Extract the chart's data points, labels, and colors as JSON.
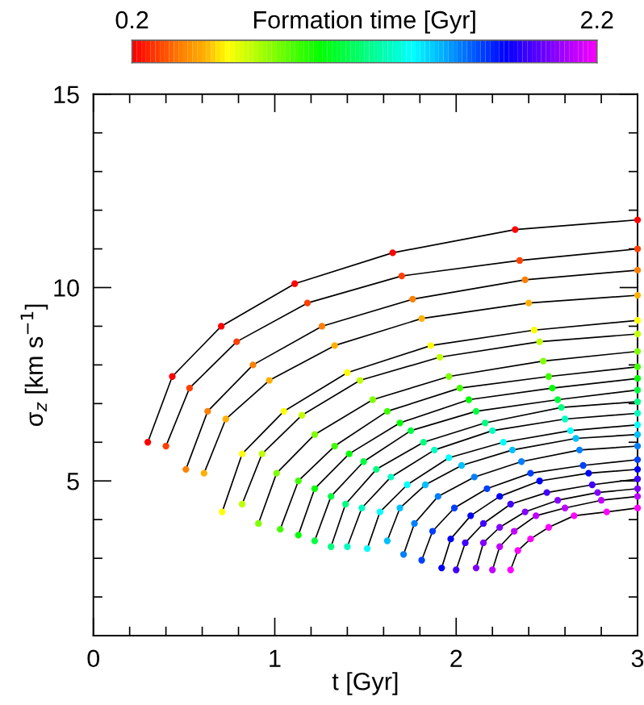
{
  "chart_data": {
    "type": "scatter",
    "xlabel": "t [Gyr]",
    "ylabel": "σ$_{z}$ [km s$^{−1}$]",
    "clabel": "Formation time [Gyr]",
    "clim": [
      0.2,
      2.2
    ],
    "cticks": [
      0.2,
      2.2
    ],
    "xlim": [
      0,
      3
    ],
    "ylim": [
      1,
      15
    ],
    "xticks": [
      0,
      {
        "value": 0.2,
        "label": null
      },
      {
        "value": 0.4,
        "label": null
      },
      {
        "value": 0.6,
        "label": null
      },
      {
        "value": 0.8,
        "label": null
      },
      1,
      {
        "value": 1.2,
        "label": null
      },
      {
        "value": 1.4,
        "label": null
      },
      {
        "value": 1.6,
        "label": null
      },
      {
        "value": 1.8,
        "label": null
      },
      2,
      {
        "value": 2.2,
        "label": null
      },
      {
        "value": 2.4,
        "label": null
      },
      {
        "value": 2.6,
        "label": null
      },
      {
        "value": 2.8,
        "label": null
      },
      3
    ],
    "yticks": [
      {
        "value": 1,
        "label": null
      },
      {
        "value": 2,
        "label": null
      },
      {
        "value": 3,
        "label": null
      },
      {
        "value": 4,
        "label": null
      },
      5,
      {
        "value": 6,
        "label": null
      },
      {
        "value": 7,
        "label": null
      },
      {
        "value": 8,
        "label": null
      },
      {
        "value": 9,
        "label": null
      },
      10,
      {
        "value": 11,
        "label": null
      },
      {
        "value": 12,
        "label": null
      },
      {
        "value": 13,
        "label": null
      },
      {
        "value": 14,
        "label": null
      },
      15
    ],
    "grid": false,
    "legend": false,
    "marker": "circle",
    "series": [
      {
        "color": "#ff0000",
        "x": [
          0.3,
          0.435,
          0.705,
          1.11,
          1.65,
          2.325,
          3.0
        ],
        "values": [
          6.0,
          7.7,
          9.0,
          10.1,
          10.9,
          11.5,
          11.75
        ]
      },
      {
        "color": "#ff4000",
        "x": [
          0.4,
          0.53,
          0.79,
          1.18,
          1.7,
          2.35,
          3.0
        ],
        "values": [
          5.9,
          7.4,
          8.6,
          9.6,
          10.3,
          10.7,
          11.0
        ]
      },
      {
        "color": "#ff8000",
        "x": [
          0.51,
          0.63,
          0.88,
          1.26,
          1.76,
          2.38,
          3.0
        ],
        "values": [
          5.3,
          6.8,
          8.0,
          9.0,
          9.7,
          10.2,
          10.45
        ]
      },
      {
        "color": "#ffb000",
        "x": [
          0.61,
          0.73,
          0.97,
          1.33,
          1.81,
          2.4,
          3.0
        ],
        "values": [
          5.2,
          6.6,
          7.6,
          8.5,
          9.2,
          9.6,
          9.8
        ]
      },
      {
        "color": "#ffff00",
        "x": [
          0.71,
          0.82,
          1.05,
          1.4,
          1.86,
          2.43,
          3.0
        ],
        "values": [
          4.2,
          5.7,
          6.8,
          7.8,
          8.5,
          8.9,
          9.15
        ]
      },
      {
        "color": "#c0ff00",
        "x": [
          0.82,
          0.93,
          1.15,
          1.47,
          1.91,
          2.46,
          3.0
        ],
        "values": [
          4.4,
          5.7,
          6.7,
          7.6,
          8.2,
          8.6,
          8.8
        ]
      },
      {
        "color": "#80ff00",
        "x": [
          0.91,
          1.01,
          1.22,
          1.54,
          1.96,
          2.48,
          3.0
        ],
        "values": [
          3.9,
          5.2,
          6.2,
          7.1,
          7.7,
          8.1,
          8.35
        ]
      },
      {
        "color": "#40ff00",
        "x": [
          1.03,
          1.13,
          1.33,
          1.62,
          2.02,
          2.51,
          3.0
        ],
        "values": [
          3.75,
          5.0,
          5.9,
          6.8,
          7.4,
          7.7,
          7.95
        ]
      },
      {
        "color": "#00ff00",
        "x": [
          1.13,
          1.22,
          1.41,
          1.69,
          2.07,
          2.53,
          3.0
        ],
        "values": [
          3.6,
          4.8,
          5.7,
          6.5,
          7.1,
          7.4,
          7.65
        ]
      },
      {
        "color": "#00ff40",
        "x": [
          1.22,
          1.31,
          1.49,
          1.75,
          2.11,
          2.56,
          3.0
        ],
        "values": [
          3.45,
          4.6,
          5.5,
          6.3,
          6.8,
          7.1,
          7.35
        ]
      },
      {
        "color": "#00ff80",
        "x": [
          1.31,
          1.39,
          1.56,
          1.82,
          2.16,
          2.58,
          3.0
        ],
        "values": [
          3.3,
          4.4,
          5.3,
          6.0,
          6.5,
          6.9,
          7.05
        ]
      },
      {
        "color": "#00ffc0",
        "x": [
          1.4,
          1.48,
          1.64,
          1.88,
          2.2,
          2.6,
          3.0
        ],
        "values": [
          3.3,
          4.3,
          5.1,
          5.8,
          6.3,
          6.6,
          6.75
        ]
      },
      {
        "color": "#00ffff",
        "x": [
          1.51,
          1.58,
          1.73,
          1.96,
          2.26,
          2.63,
          3.0
        ],
        "values": [
          3.25,
          4.2,
          4.9,
          5.6,
          6.0,
          6.3,
          6.45
        ]
      },
      {
        "color": "#00c0ff",
        "x": [
          1.62,
          1.69,
          1.83,
          2.03,
          2.31,
          2.66,
          3.0
        ],
        "values": [
          3.45,
          4.3,
          4.9,
          5.4,
          5.8,
          6.1,
          6.2
        ]
      },
      {
        "color": "#0080ff",
        "x": [
          1.71,
          1.77,
          1.9,
          2.1,
          2.36,
          2.68,
          3.0
        ],
        "values": [
          3.1,
          3.9,
          4.6,
          5.1,
          5.5,
          5.8,
          5.9
        ]
      },
      {
        "color": "#0040ff",
        "x": [
          1.81,
          1.87,
          1.99,
          2.17,
          2.41,
          2.7,
          3.0
        ],
        "values": [
          2.95,
          3.7,
          4.3,
          4.8,
          5.2,
          5.4,
          5.55
        ]
      },
      {
        "color": "#0000ff",
        "x": [
          1.92,
          1.97,
          2.08,
          2.24,
          2.46,
          2.73,
          3.0
        ],
        "values": [
          2.75,
          3.5,
          4.1,
          4.6,
          5.0,
          5.2,
          5.3
        ]
      },
      {
        "color": "#4000ff",
        "x": [
          2.0,
          2.05,
          2.15,
          2.3,
          2.5,
          2.75,
          3.0
        ],
        "values": [
          2.7,
          3.4,
          3.9,
          4.4,
          4.7,
          4.9,
          5.05
        ]
      },
      {
        "color": "#8000ff",
        "x": [
          2.11,
          2.15,
          2.24,
          2.38,
          2.56,
          2.78,
          3.0
        ],
        "values": [
          2.75,
          3.4,
          3.8,
          4.2,
          4.5,
          4.7,
          4.8
        ]
      },
      {
        "color": "#c000ff",
        "x": [
          2.2,
          2.24,
          2.32,
          2.44,
          2.6,
          2.8,
          3.0
        ],
        "values": [
          2.7,
          3.3,
          3.7,
          4.1,
          4.3,
          4.5,
          4.6
        ]
      },
      {
        "color": "#ff00ff",
        "x": [
          2.3,
          2.34,
          2.41,
          2.51,
          2.65,
          2.83,
          3.0
        ],
        "values": [
          2.7,
          3.2,
          3.5,
          3.8,
          4.1,
          4.2,
          4.3
        ]
      },
      {
        "type": "line",
        "marker": "none",
        "color": "#000000",
        "x": [
          0.3,
          0.435,
          0.705,
          1.11,
          1.65,
          2.325,
          3.0
        ],
        "values": [
          6.0,
          7.7,
          9.0,
          10.1,
          10.9,
          11.5,
          11.75
        ]
      },
      {
        "type": "line",
        "marker": "none",
        "color": "#000000",
        "x": [
          0.4,
          0.53,
          0.79,
          1.18,
          1.7,
          2.35,
          3.0
        ],
        "values": [
          5.9,
          7.4,
          8.6,
          9.6,
          10.3,
          10.7,
          11.0
        ]
      },
      {
        "type": "line",
        "marker": "none",
        "color": "#000000",
        "x": [
          0.51,
          0.63,
          0.88,
          1.26,
          1.76,
          2.38,
          3.0
        ],
        "values": [
          5.3,
          6.8,
          8.0,
          9.0,
          9.7,
          10.2,
          10.45
        ]
      },
      {
        "type": "line",
        "marker": "none",
        "color": "#000000",
        "x": [
          0.61,
          0.73,
          0.97,
          1.33,
          1.81,
          2.4,
          3.0
        ],
        "values": [
          5.2,
          6.6,
          7.6,
          8.5,
          9.2,
          9.6,
          9.8
        ]
      },
      {
        "type": "line",
        "marker": "none",
        "color": "#000000",
        "x": [
          0.71,
          0.82,
          1.05,
          1.4,
          1.86,
          2.43,
          3.0
        ],
        "values": [
          4.2,
          5.7,
          6.8,
          7.8,
          8.5,
          8.9,
          9.15
        ]
      },
      {
        "type": "line",
        "marker": "none",
        "color": "#000000",
        "x": [
          0.82,
          0.93,
          1.15,
          1.47,
          1.91,
          2.46,
          3.0
        ],
        "values": [
          4.4,
          5.7,
          6.7,
          7.6,
          8.2,
          8.6,
          8.8
        ]
      },
      {
        "type": "line",
        "marker": "none",
        "color": "#000000",
        "x": [
          0.91,
          1.01,
          1.22,
          1.54,
          1.96,
          2.48,
          3.0
        ],
        "values": [
          3.9,
          5.2,
          6.2,
          7.1,
          7.7,
          8.1,
          8.35
        ]
      },
      {
        "type": "line",
        "marker": "none",
        "color": "#000000",
        "x": [
          1.03,
          1.13,
          1.33,
          1.62,
          2.02,
          2.51,
          3.0
        ],
        "values": [
          3.75,
          5.0,
          5.9,
          6.8,
          7.4,
          7.7,
          7.95
        ]
      },
      {
        "type": "line",
        "marker": "none",
        "color": "#000000",
        "x": [
          1.13,
          1.22,
          1.41,
          1.69,
          2.07,
          2.53,
          3.0
        ],
        "values": [
          3.6,
          4.8,
          5.7,
          6.5,
          7.1,
          7.4,
          7.65
        ]
      },
      {
        "type": "line",
        "marker": "none",
        "color": "#000000",
        "x": [
          1.22,
          1.31,
          1.49,
          1.75,
          2.11,
          2.56,
          3.0
        ],
        "values": [
          3.45,
          4.6,
          5.5,
          6.3,
          6.8,
          7.1,
          7.35
        ]
      },
      {
        "type": "line",
        "marker": "none",
        "color": "#000000",
        "x": [
          1.31,
          1.39,
          1.56,
          1.82,
          2.16,
          2.58,
          3.0
        ],
        "values": [
          3.3,
          4.4,
          5.3,
          6.0,
          6.5,
          6.9,
          7.05
        ]
      },
      {
        "type": "line",
        "marker": "none",
        "color": "#000000",
        "x": [
          1.4,
          1.48,
          1.64,
          1.88,
          2.2,
          2.6,
          3.0
        ],
        "values": [
          3.3,
          4.3,
          5.1,
          5.8,
          6.3,
          6.6,
          6.75
        ]
      },
      {
        "type": "line",
        "marker": "none",
        "color": "#000000",
        "x": [
          1.51,
          1.58,
          1.73,
          1.96,
          2.26,
          2.63,
          3.0
        ],
        "values": [
          3.25,
          4.2,
          4.9,
          5.6,
          6.0,
          6.3,
          6.45
        ]
      },
      {
        "type": "line",
        "marker": "none",
        "color": "#000000",
        "x": [
          1.62,
          1.69,
          1.83,
          2.03,
          2.31,
          2.66,
          3.0
        ],
        "values": [
          3.45,
          4.3,
          4.9,
          5.4,
          5.8,
          6.1,
          6.2
        ]
      },
      {
        "type": "line",
        "marker": "none",
        "color": "#000000",
        "x": [
          1.71,
          1.77,
          1.9,
          2.1,
          2.36,
          2.68,
          3.0
        ],
        "values": [
          3.1,
          3.9,
          4.6,
          5.1,
          5.5,
          5.8,
          5.9
        ]
      },
      {
        "type": "line",
        "marker": "none",
        "color": "#000000",
        "x": [
          1.81,
          1.87,
          1.99,
          2.17,
          2.41,
          2.7,
          3.0
        ],
        "values": [
          2.95,
          3.7,
          4.3,
          4.8,
          5.2,
          5.4,
          5.55
        ]
      },
      {
        "type": "line",
        "marker": "none",
        "color": "#000000",
        "x": [
          1.92,
          1.97,
          2.08,
          2.24,
          2.46,
          2.73,
          3.0
        ],
        "values": [
          2.75,
          3.5,
          4.1,
          4.6,
          5.0,
          5.2,
          5.3
        ]
      },
      {
        "type": "line",
        "marker": "none",
        "color": "#000000",
        "x": [
          2.0,
          2.05,
          2.15,
          2.3,
          2.5,
          2.75,
          3.0
        ],
        "values": [
          2.7,
          3.4,
          3.9,
          4.4,
          4.7,
          4.9,
          5.05
        ]
      },
      {
        "type": "line",
        "marker": "none",
        "color": "#000000",
        "x": [
          2.11,
          2.15,
          2.24,
          2.38,
          2.56,
          2.78,
          3.0
        ],
        "values": [
          2.75,
          3.4,
          3.8,
          4.2,
          4.5,
          4.7,
          4.8
        ]
      },
      {
        "type": "line",
        "marker": "none",
        "color": "#000000",
        "x": [
          2.2,
          2.24,
          2.32,
          2.44,
          2.6,
          2.8,
          3.0
        ],
        "values": [
          2.7,
          3.3,
          3.7,
          4.1,
          4.3,
          4.5,
          4.6
        ]
      },
      {
        "type": "line",
        "marker": "none",
        "color": "#000000",
        "x": [
          2.3,
          2.34,
          2.41,
          2.51,
          2.65,
          2.83,
          3.0
        ],
        "values": [
          2.7,
          3.2,
          3.5,
          3.8,
          4.1,
          4.2,
          4.3
        ]
      }
    ]
  }
}
